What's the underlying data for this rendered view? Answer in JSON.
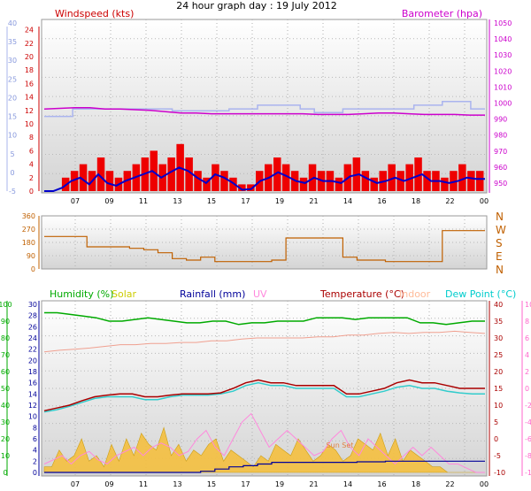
{
  "chart_data": [
    {
      "type": "line",
      "title": "24 hour graph day : 19 July 2012",
      "x_ticks": [
        "07",
        "09",
        "11",
        "13",
        "15",
        "17",
        "19",
        "21",
        "14",
        "16",
        "18",
        "22",
        "00"
      ],
      "left_axis": {
        "label": "Windspeed (kts)",
        "ticks": [
          0,
          2,
          4,
          6,
          8,
          10,
          12,
          14,
          16,
          18,
          20,
          22,
          24
        ],
        "ylim": [
          0,
          25
        ]
      },
      "left_outer_axis": {
        "ticks": [
          -5,
          0,
          5,
          10,
          15,
          20,
          25,
          30,
          35,
          40
        ],
        "ylim": [
          -5,
          40
        ]
      },
      "right_axis": {
        "label": "Barometer (hpa)",
        "ticks": [
          950,
          960,
          970,
          980,
          990,
          1000,
          1010,
          1020,
          1030,
          1040,
          1050
        ],
        "ylim": [
          945,
          1050
        ]
      },
      "series": [
        {
          "name": "Windspeed (kts)",
          "color": "#ee0000",
          "kind": "bars",
          "values": [
            0,
            0,
            2,
            3,
            4,
            3,
            5,
            3,
            2,
            3,
            4,
            5,
            6,
            4,
            5,
            7,
            5,
            3,
            2,
            4,
            3,
            2,
            1,
            1,
            3,
            4,
            5,
            4,
            3,
            2,
            4,
            3,
            3,
            2,
            4,
            5,
            3,
            2,
            3,
            4,
            3,
            4,
            5,
            3,
            3,
            2,
            3,
            4,
            3,
            3
          ]
        },
        {
          "values": [
            0,
            0,
            0.5,
            1.5,
            2,
            1,
            2.5,
            1.2,
            0.8,
            1.5,
            2,
            2.5,
            3,
            2,
            2.8,
            3.5,
            3,
            2,
            1.2,
            2.5,
            2,
            1.2,
            0.2,
            0.3,
            1.5,
            2,
            2.8,
            2.2,
            1.5,
            1.2,
            2,
            1.5,
            1.5,
            1.2,
            2.2,
            2.5,
            1.8,
            1.2,
            1.5,
            2,
            1.5,
            2,
            2.5,
            1.5,
            1.5,
            1.2,
            1.5,
            2,
            1.8,
            1.8
          ],
          "color": "#0000cc"
        },
        {
          "values": [
            12.2,
            12.3,
            12.4,
            12.4,
            12.2,
            12.2,
            12.1,
            12.0,
            11.8,
            11.6,
            11.6,
            11.5,
            11.5,
            11.5,
            11.5,
            11.5,
            11.5,
            11.5,
            11.4,
            11.4,
            11.4,
            11.5,
            11.6,
            11.6,
            11.5,
            11.4,
            11.4,
            11.4,
            11.3,
            11.3
          ],
          "color": "#cc00cc"
        },
        {
          "values": [
            15,
            15,
            17,
            17,
            17,
            17,
            17,
            17,
            17,
            16.5,
            16.5,
            16.5,
            16.5,
            17,
            17,
            18,
            18,
            18,
            17,
            16,
            16,
            17,
            17,
            17,
            17,
            17,
            18,
            18,
            19,
            19,
            17,
            17
          ],
          "color": "#aab4ee"
        }
      ]
    },
    {
      "type": "line",
      "right_labels": [
        "N",
        "W",
        "S",
        "E",
        "N"
      ],
      "left_axis": {
        "ticks": [
          0,
          90,
          180,
          270,
          360
        ],
        "ylim": [
          0,
          360
        ]
      },
      "series": [
        {
          "values": [
            220,
            220,
            220,
            150,
            150,
            150,
            140,
            130,
            110,
            70,
            60,
            80,
            50,
            50,
            50,
            50,
            60,
            210,
            210,
            210,
            210,
            80,
            60,
            60,
            50,
            50,
            50,
            50,
            260,
            260,
            260,
            260
          ],
          "color": "#c06000"
        }
      ]
    },
    {
      "type": "area",
      "legend": [
        {
          "label": "Humidity (%)",
          "color": "#00aa00"
        },
        {
          "label": "Solar",
          "color": "#cccc00"
        },
        {
          "label": "Rainfall (mm)",
          "color": "#000099"
        },
        {
          "label": "UV",
          "color": "#ff88dd"
        },
        {
          "label": "Temperature (°C)",
          "color": "#aa0000"
        },
        {
          "label": "Indoor",
          "color": "#ffbb99"
        },
        {
          "label": "Dew Point (°C)",
          "color": "#00cccc"
        }
      ],
      "annotation": "Sun Set",
      "x_ticks": [
        "07",
        "09",
        "11",
        "13",
        "15",
        "17",
        "19",
        "21",
        "14",
        "16",
        "18",
        "22",
        "00"
      ],
      "left_outer_axis": {
        "ticks": [
          0,
          10,
          20,
          30,
          40,
          50,
          60,
          70,
          80,
          90,
          100
        ],
        "ylim": [
          0,
          100
        ]
      },
      "left_axis": {
        "ticks": [
          0,
          2,
          4,
          6,
          8,
          10,
          12,
          14,
          16,
          18,
          20,
          22,
          24,
          26,
          28,
          30
        ],
        "ylim": [
          0,
          30
        ]
      },
      "right_axis": {
        "ticks": [
          -10,
          -5,
          0,
          5,
          10,
          15,
          20,
          25,
          30,
          35,
          40
        ],
        "ylim": [
          -10,
          40
        ]
      },
      "right_outer_axis": {
        "ticks": [
          -10,
          -9,
          -8,
          -7,
          -6,
          -5,
          -4,
          -3,
          -2,
          -1,
          0,
          1,
          2,
          3,
          4,
          5,
          6,
          7,
          8,
          9,
          10
        ],
        "ylim": [
          -10,
          10
        ]
      },
      "series": [
        {
          "values": [
            95,
            95,
            94,
            93,
            92,
            90,
            90,
            91,
            92,
            91,
            90,
            89,
            89,
            90,
            90,
            88,
            89,
            89,
            90,
            90,
            90,
            92,
            92,
            92,
            91,
            92,
            92,
            92,
            92,
            89,
            89,
            88,
            89,
            90,
            90
          ],
          "color": "#00aa00"
        },
        {
          "values": [
            21.5,
            21.8,
            22,
            22.2,
            22.5,
            22.8,
            22.8,
            23,
            23,
            23.2,
            23.2,
            23.5,
            23.5,
            23.8,
            24,
            24,
            24,
            24,
            24.2,
            24.2,
            24.5,
            24.5,
            24.8,
            25,
            24.8,
            25,
            25,
            25.2,
            25,
            24.8
          ],
          "color": "#f0a090"
        },
        {
          "values": [
            11,
            11.5,
            12,
            12.8,
            13.5,
            13.8,
            14,
            14,
            13.5,
            13.5,
            13.8,
            14,
            14,
            14,
            14.2,
            15,
            16,
            16.5,
            16,
            16,
            15.5,
            15.5,
            15.5,
            15.5,
            14,
            14,
            14.5,
            15,
            16,
            16.5,
            16,
            16,
            15.5,
            15,
            15,
            15
          ],
          "color": "#aa0000"
        },
        {
          "values": [
            10.8,
            11.2,
            11.8,
            12.5,
            13.2,
            13.5,
            13.5,
            13.5,
            13,
            13,
            13.5,
            13.8,
            13.8,
            13.8,
            14,
            14.5,
            15.5,
            16,
            15.5,
            15.5,
            15,
            15,
            15,
            15,
            13.5,
            13.5,
            14,
            14.5,
            15.2,
            15.5,
            15,
            15,
            14.5,
            14.2,
            14,
            14
          ],
          "color": "#33cccc"
        },
        {
          "values": [
            0,
            0,
            0,
            0,
            0,
            0,
            0,
            0,
            0,
            0,
            0,
            0.2,
            0.6,
            1,
            1.2,
            1.5,
            1.8,
            1.8,
            1.8,
            1.8,
            1.8,
            1.8,
            1.9,
            1.9,
            2,
            2,
            2,
            2,
            2,
            2,
            2,
            2
          ],
          "color": "#000099"
        },
        {
          "values": [
            1,
            1,
            4,
            2,
            3,
            6,
            2,
            3,
            1,
            5,
            2,
            6,
            3,
            7,
            5,
            4,
            8,
            3,
            5,
            2,
            4,
            3,
            5,
            6,
            2,
            4,
            3,
            2,
            1,
            3,
            2,
            5,
            4,
            3,
            6,
            4,
            2,
            3,
            5,
            4,
            2,
            3,
            6,
            5,
            4,
            7,
            3,
            6,
            2,
            4,
            3,
            2,
            1,
            1,
            0,
            0,
            0,
            0,
            0,
            0
          ],
          "color": "#cc9900"
        },
        {
          "values": [
            -9,
            -8.5,
            -8,
            -9,
            -8,
            -7.5,
            -8.5,
            -9,
            -8,
            -7.5,
            -7,
            -8,
            -7,
            -6.5,
            -7,
            -8,
            -7.5,
            -6,
            -5,
            -7,
            -8,
            -6,
            -4,
            -3,
            -5,
            -7,
            -6,
            -5,
            -6,
            -7,
            -8,
            -7.5,
            -6,
            -5,
            -7,
            -8,
            -6,
            -7,
            -8,
            -9,
            -8,
            -7,
            -8,
            -7,
            -8,
            -9,
            -9,
            -9.5,
            -10,
            -10
          ],
          "color": "#ff88dd"
        }
      ]
    }
  ]
}
